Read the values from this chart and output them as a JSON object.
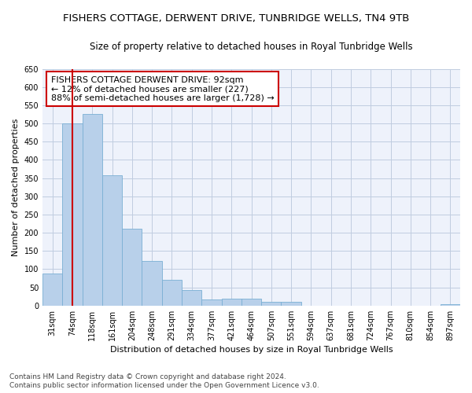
{
  "title": "FISHERS COTTAGE, DERWENT DRIVE, TUNBRIDGE WELLS, TN4 9TB",
  "subtitle": "Size of property relative to detached houses in Royal Tunbridge Wells",
  "xlabel": "Distribution of detached houses by size in Royal Tunbridge Wells",
  "ylabel": "Number of detached properties",
  "categories": [
    "31sqm",
    "74sqm",
    "118sqm",
    "161sqm",
    "204sqm",
    "248sqm",
    "291sqm",
    "334sqm",
    "377sqm",
    "421sqm",
    "464sqm",
    "507sqm",
    "551sqm",
    "594sqm",
    "637sqm",
    "681sqm",
    "724sqm",
    "767sqm",
    "810sqm",
    "854sqm",
    "897sqm"
  ],
  "values": [
    88,
    500,
    527,
    358,
    212,
    122,
    70,
    42,
    17,
    20,
    20,
    10,
    11,
    0,
    0,
    0,
    0,
    0,
    0,
    0,
    4
  ],
  "bar_color": "#b8d0ea",
  "bar_edge_color": "#7aafd4",
  "vline_color": "#cc0000",
  "vline_position": 1.5,
  "annotation_text": "FISHERS COTTAGE DERWENT DRIVE: 92sqm\n← 12% of detached houses are smaller (227)\n88% of semi-detached houses are larger (1,728) →",
  "annotation_box_facecolor": "#ffffff",
  "annotation_box_edgecolor": "#cc0000",
  "ylim": [
    0,
    650
  ],
  "yticks": [
    0,
    50,
    100,
    150,
    200,
    250,
    300,
    350,
    400,
    450,
    500,
    550,
    600,
    650
  ],
  "footnote1": "Contains HM Land Registry data © Crown copyright and database right 2024.",
  "footnote2": "Contains public sector information licensed under the Open Government Licence v3.0.",
  "bg_color": "#eef2fb",
  "grid_color": "#c0cce0",
  "title_fontsize": 9.5,
  "subtitle_fontsize": 8.5,
  "axis_label_fontsize": 8,
  "tick_fontsize": 7,
  "annotation_fontsize": 8,
  "footnote_fontsize": 6.5
}
